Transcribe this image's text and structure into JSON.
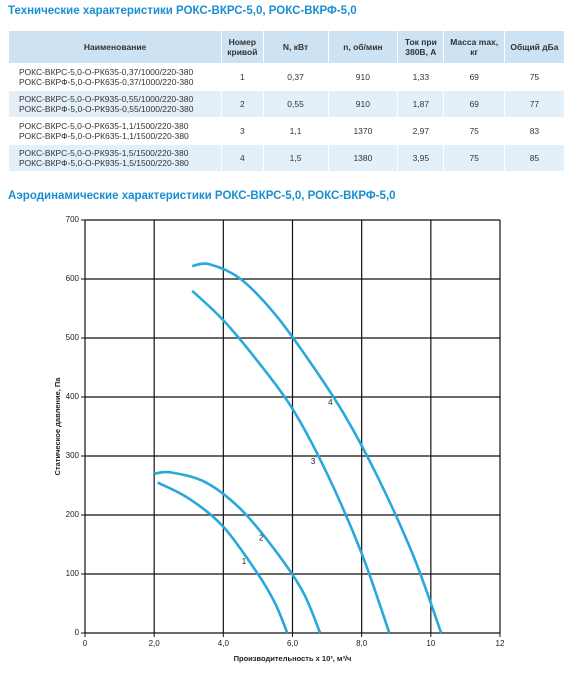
{
  "title": "Технические характеристики РОКС-ВКРС-5,0, РОКС-ВКРФ-5,0",
  "table": {
    "header": [
      "Наименование",
      "Номер кривой",
      "N, кВт",
      "n, об/мин",
      "Ток при 380В, А",
      "Масса max, кг",
      "Общий дБа"
    ],
    "rows": [
      [
        [
          "РОКС-ВКРС-5,0-О-РК635-0,37/1000/220-380",
          "РОКС-ВКРФ-5,0-О-РК635-0,37/1000/220-380"
        ],
        "1",
        "0,37",
        "910",
        "1,33",
        "69",
        "75"
      ],
      [
        [
          "РОКС-ВКРС-5,0-О-РК935-0,55/1000/220-380",
          "РОКС-ВКРФ-5,0-О-РК935-0,55/1000/220-380"
        ],
        "2",
        "0,55",
        "910",
        "1,87",
        "69",
        "77"
      ],
      [
        [
          "РОКС-ВКРС-5,0-О-РК635-1,1/1500/220-380",
          "РОКС-ВКРФ-5,0-О-РК635-1,1/1500/220-380"
        ],
        "3",
        "1,1",
        "1370",
        "2,97",
        "75",
        "83"
      ],
      [
        [
          "РОКС-ВКРС-5,0-О-РК935-1,5/1500/220-380",
          "РОКС-ВКРФ-5,0-О-РК935-1,5/1500/220-380"
        ],
        "4",
        "1,5",
        "1380",
        "3,95",
        "75",
        "85"
      ]
    ]
  },
  "chart_data": {
    "type": "line",
    "title": "Аэродинамические характеристики РОКС-ВКРС-5,0, РОКС-ВКРФ-5,0",
    "x_label": "Производительность x 10³, м³/ч",
    "y_label": "Статическое давление, Па",
    "xlim": [
      0,
      12
    ],
    "ylim": [
      0,
      700
    ],
    "xticks": [
      0,
      {
        "value": 2,
        "label": "2,0"
      },
      {
        "value": 4,
        "label": "4,0"
      },
      {
        "value": 6,
        "label": "6,0"
      },
      {
        "value": 8,
        "label": "8,0"
      },
      10,
      12
    ],
    "yticks": [
      0,
      100,
      200,
      300,
      400,
      500,
      600,
      700
    ],
    "grid": true,
    "series": [
      {
        "name": "1",
        "color": "#29a8dc",
        "x": [
          2.1,
          3,
          4,
          5,
          5.5,
          5.85
        ],
        "values": [
          255,
          228,
          180,
          100,
          50,
          0
        ]
      },
      {
        "name": "2",
        "color": "#29a8dc",
        "x": [
          2.0,
          2.5,
          3.5,
          4.5,
          5.5,
          6.3,
          6.8
        ],
        "values": [
          270,
          272,
          255,
          210,
          140,
          70,
          0
        ]
      },
      {
        "name": "3",
        "color": "#29a8dc",
        "x": [
          3.1,
          4,
          5,
          6,
          7,
          8,
          8.8
        ],
        "values": [
          580,
          530,
          460,
          380,
          270,
          135,
          0
        ]
      },
      {
        "name": "4",
        "color": "#29a8dc",
        "x": [
          3.1,
          3.6,
          4.5,
          5.5,
          6.5,
          7.5,
          8.5,
          9.5,
          10.3
        ],
        "values": [
          622,
          625,
          600,
          540,
          460,
          370,
          260,
          130,
          0
        ]
      }
    ]
  }
}
